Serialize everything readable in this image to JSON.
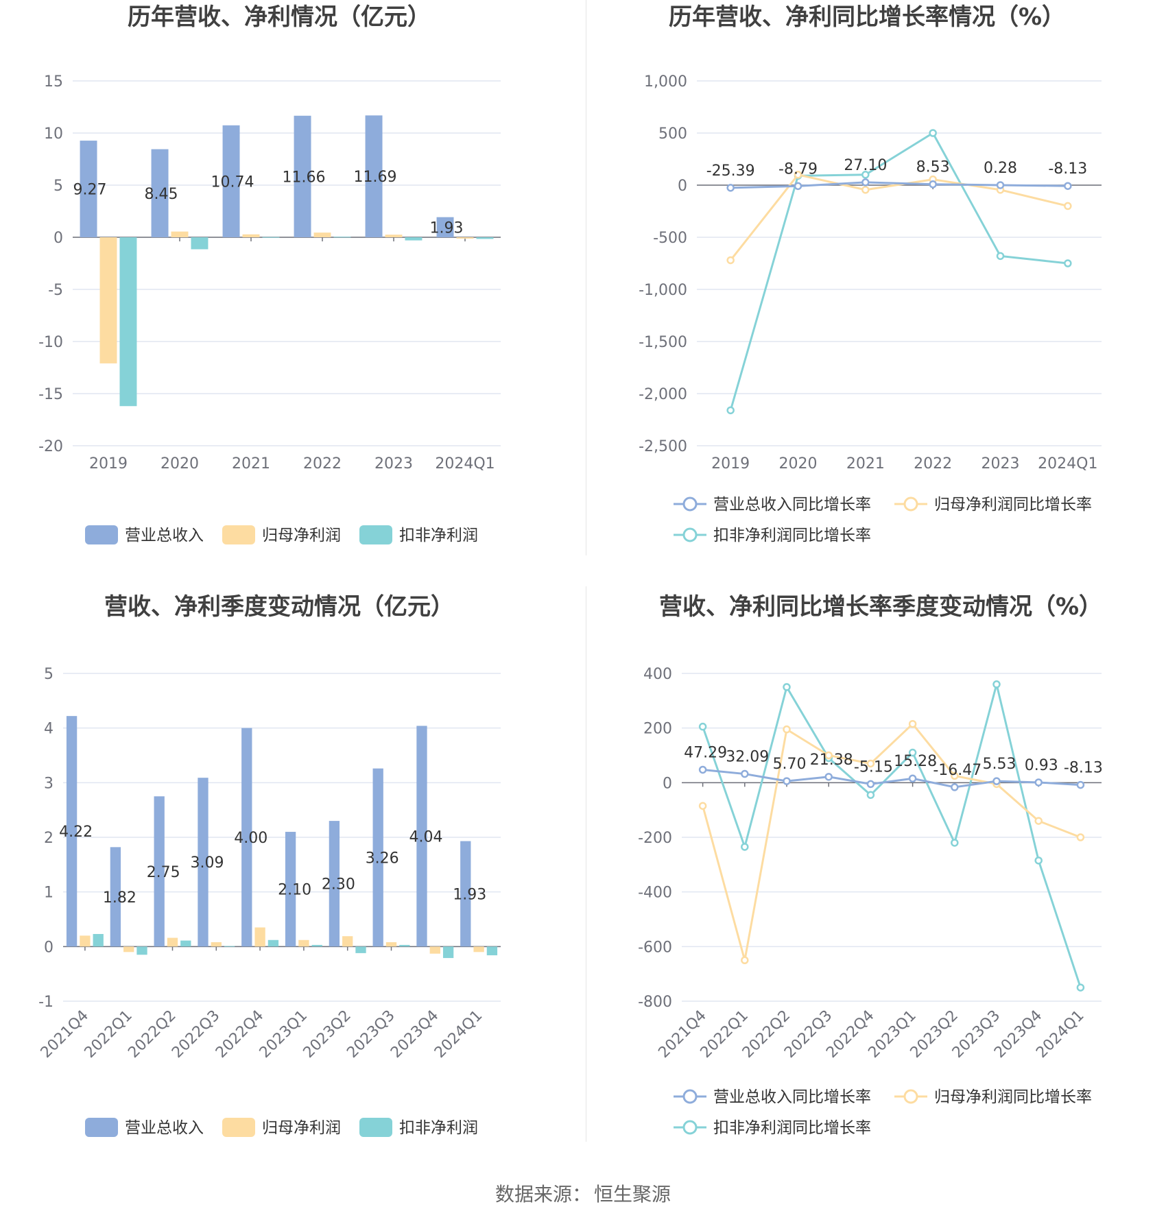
{
  "source_label": "数据来源：",
  "source_name": "恒生聚源",
  "chart_data": [
    {
      "type": "bar",
      "title": "历年营收、净利情况（亿元）",
      "categories": [
        "2019",
        "2020",
        "2021",
        "2022",
        "2023",
        "2024Q1"
      ],
      "ylim": [
        -20,
        15
      ],
      "yticks": [
        "15",
        "10",
        "5",
        "0",
        "-5",
        "-10",
        "-15",
        "-20"
      ],
      "grid": true,
      "legend_position": "bottom",
      "series": [
        {
          "name": "营业总收入",
          "color": "#8eacdb",
          "values": [
            9.27,
            8.45,
            10.74,
            11.66,
            11.69,
            1.93
          ],
          "labels": [
            "9.27",
            "8.45",
            "10.74",
            "11.66",
            "11.69",
            "1.93"
          ]
        },
        {
          "name": "归母净利润",
          "color": "#fddca1",
          "values": [
            -12.1,
            0.55,
            0.28,
            0.45,
            0.25,
            -0.13
          ]
        },
        {
          "name": "扣非净利润",
          "color": "#85d2d7",
          "values": [
            -16.2,
            -1.15,
            0.02,
            0.05,
            -0.3,
            -0.16
          ]
        }
      ]
    },
    {
      "type": "line",
      "title": "历年营收、净利同比增长率情况（%）",
      "categories": [
        "2019",
        "2020",
        "2021",
        "2022",
        "2023",
        "2024Q1"
      ],
      "ylim": [
        -2500,
        1000
      ],
      "yticks": [
        "1,000",
        "500",
        "0",
        "-500",
        "-1,000",
        "-1,500",
        "-2,000",
        "-2,500"
      ],
      "grid": true,
      "legend_position": "bottom",
      "series": [
        {
          "name": "营业总收入同比增长率",
          "color": "#8eacdb",
          "values": [
            -25.39,
            -8.79,
            27.1,
            8.53,
            0.28,
            -8.13
          ],
          "labels": [
            "-25.39",
            "-8.79",
            "27.10",
            "8.53",
            "0.28",
            "-8.13"
          ]
        },
        {
          "name": "归母净利润同比增长率",
          "color": "#fddca1",
          "values": [
            -720,
            100,
            -45,
            55,
            -45,
            -200
          ]
        },
        {
          "name": "扣非净利润同比增长率",
          "color": "#85d2d7",
          "values": [
            -2160,
            90,
            100,
            500,
            -680,
            -750
          ]
        }
      ]
    },
    {
      "type": "bar",
      "title": "营收、净利季度变动情况（亿元）",
      "categories": [
        "2021Q4",
        "2022Q1",
        "2022Q2",
        "2022Q3",
        "2022Q4",
        "2023Q1",
        "2023Q2",
        "2023Q3",
        "2023Q4",
        "2024Q1"
      ],
      "ylim": [
        -1,
        5
      ],
      "yticks": [
        "5",
        "4",
        "3",
        "2",
        "1",
        "0",
        "-1"
      ],
      "grid": true,
      "legend_position": "bottom",
      "series": [
        {
          "name": "营业总收入",
          "color": "#8eacdb",
          "values": [
            4.22,
            1.82,
            2.75,
            3.09,
            4.0,
            2.1,
            2.3,
            3.26,
            4.04,
            1.93
          ],
          "labels": [
            "4.22",
            "1.82",
            "2.75",
            "3.09",
            "4.00",
            "2.10",
            "2.30",
            "3.26",
            "4.04",
            "1.93"
          ]
        },
        {
          "name": "归母净利润",
          "color": "#fddca1",
          "values": [
            0.2,
            -0.1,
            0.16,
            0.08,
            0.35,
            0.12,
            0.19,
            0.08,
            -0.13,
            -0.1
          ]
        },
        {
          "name": "扣非净利润",
          "color": "#85d2d7",
          "values": [
            0.23,
            -0.15,
            0.11,
            0.01,
            0.12,
            0.03,
            -0.12,
            0.03,
            -0.21,
            -0.16
          ]
        }
      ]
    },
    {
      "type": "line",
      "title": "营收、净利同比增长率季度变动情况（%）",
      "categories": [
        "2021Q4",
        "2022Q1",
        "2022Q2",
        "2022Q3",
        "2022Q4",
        "2023Q1",
        "2023Q2",
        "2023Q3",
        "2023Q4",
        "2024Q1"
      ],
      "ylim": [
        -800,
        400
      ],
      "yticks": [
        "400",
        "200",
        "0",
        "-200",
        "-400",
        "-600",
        "-800"
      ],
      "grid": true,
      "legend_position": "bottom",
      "series": [
        {
          "name": "营业总收入同比增长率",
          "color": "#8eacdb",
          "values": [
            47.29,
            32.09,
            5.7,
            21.38,
            -5.15,
            15.28,
            -16.47,
            5.53,
            0.93,
            -8.13
          ],
          "labels": [
            "47.29",
            "32.09",
            "5.70",
            "21.38",
            "-5.15",
            "15.28",
            "-16.47",
            "5.53",
            "0.93",
            "-8.13"
          ]
        },
        {
          "name": "归母净利润同比增长率",
          "color": "#fddca1",
          "values": [
            -85,
            -650,
            195,
            100,
            70,
            215,
            25,
            -5,
            -140,
            -200
          ]
        },
        {
          "name": "扣非净利润同比增长率",
          "color": "#85d2d7",
          "values": [
            205,
            -235,
            350,
            90,
            -45,
            110,
            -220,
            360,
            -285,
            -750
          ]
        }
      ]
    }
  ]
}
